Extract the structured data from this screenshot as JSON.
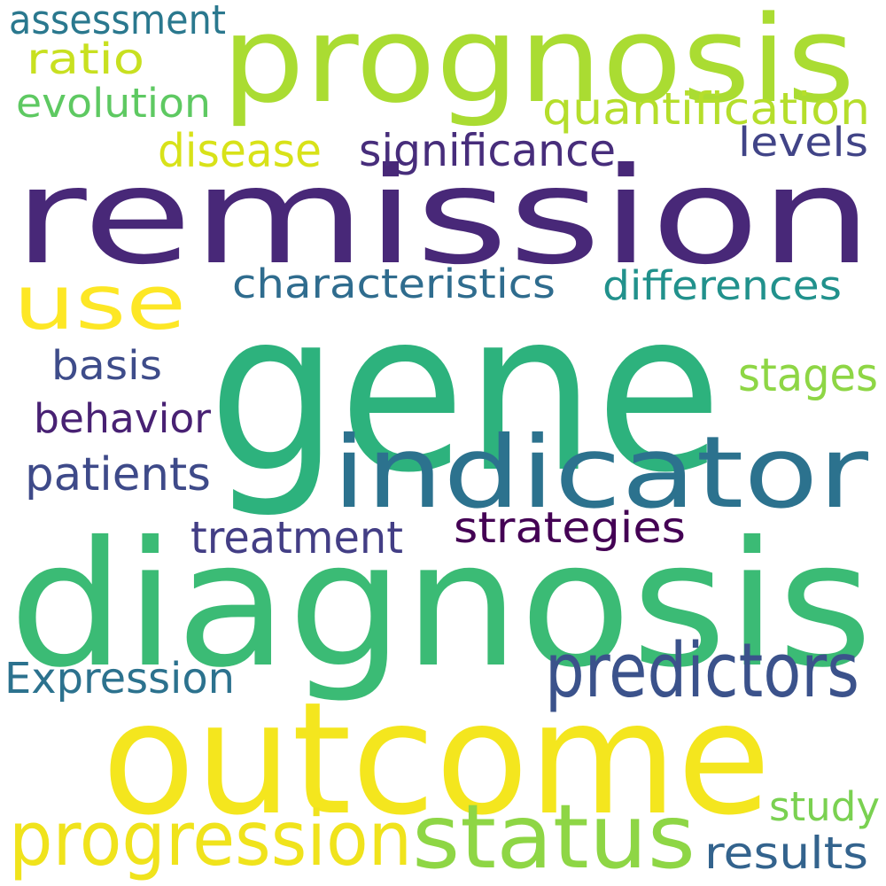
{
  "words": [
    {
      "text": "remission",
      "color": "#482878"
    },
    {
      "text": "gene",
      "color": "#2db27d"
    },
    {
      "text": "diagnosis",
      "color": "#3bbb75"
    },
    {
      "text": "outcome",
      "color": "#f4e61e"
    },
    {
      "text": "prognosis",
      "color": "#aadc32"
    },
    {
      "text": "indicator",
      "color": "#2c728e"
    },
    {
      "text": "status",
      "color": "#8ed645"
    },
    {
      "text": "progression",
      "color": "#f0e31c"
    },
    {
      "text": "predictors",
      "color": "#3b528b"
    },
    {
      "text": "use",
      "color": "#fde725"
    },
    {
      "text": "quantification",
      "color": "#b5de2b"
    },
    {
      "text": "Expression",
      "color": "#2c728e"
    },
    {
      "text": "treatment",
      "color": "#433e85"
    },
    {
      "text": "characteristics",
      "color": "#2f6c8e"
    },
    {
      "text": "differences",
      "color": "#21918c"
    },
    {
      "text": "strategies",
      "color": "#440154"
    },
    {
      "text": "significance",
      "color": "#472d7b"
    },
    {
      "text": "patients",
      "color": "#3e4a89"
    },
    {
      "text": "stages",
      "color": "#8ed645"
    },
    {
      "text": "disease",
      "color": "#d8e219"
    },
    {
      "text": "evolution",
      "color": "#5ec962"
    },
    {
      "text": "assessment",
      "color": "#2a788e"
    },
    {
      "text": "behavior",
      "color": "#482173"
    },
    {
      "text": "results",
      "color": "#33638d"
    },
    {
      "text": "ratio",
      "color": "#c8e020"
    },
    {
      "text": "basis",
      "color": "#3e4c8a"
    },
    {
      "text": "levels",
      "color": "#414487"
    },
    {
      "text": "study",
      "color": "#7ad151"
    }
  ]
}
